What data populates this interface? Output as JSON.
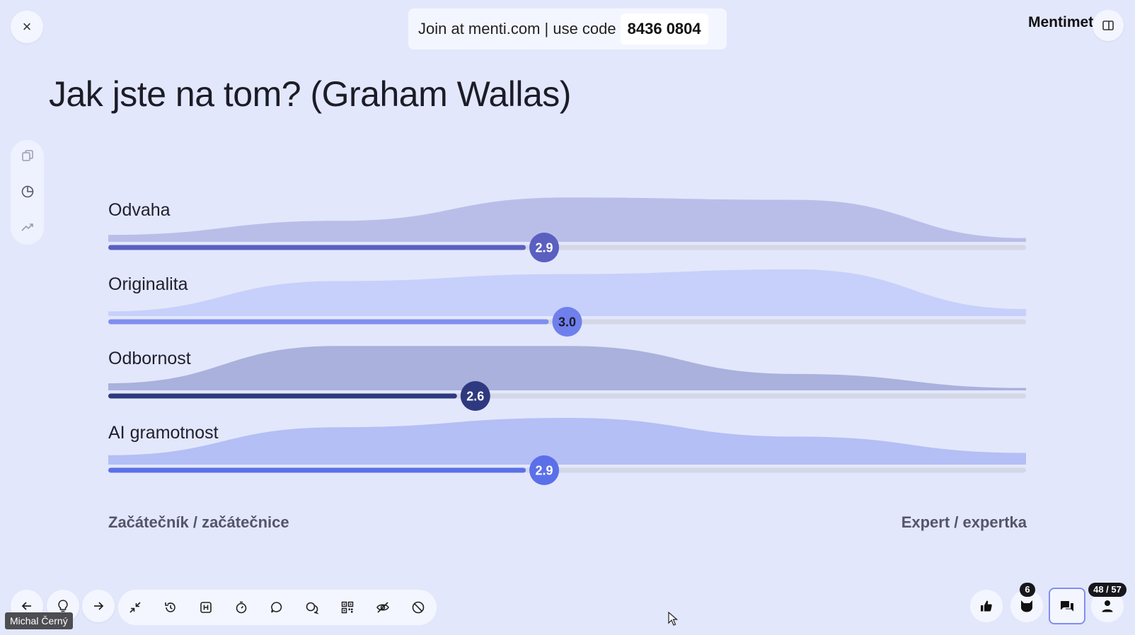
{
  "header": {
    "close_label": "×",
    "join_text": "Join at menti.com | use code",
    "join_code": "8436 0804",
    "brand_name": "Mentimeter"
  },
  "slide": {
    "title": "Jak jste na tom? (Graham Wallas)",
    "scale_min_label": "Začátečník / začátečnice",
    "scale_max_label": "Expert / expertka"
  },
  "chart_data": {
    "type": "scales",
    "scale_range": [
      1,
      5
    ],
    "items": [
      {
        "label": "Odvaha",
        "mean": 2.9,
        "mean_label": "2.9",
        "color": "#5a5fc0",
        "track_color": "#5a5fc0",
        "area_color": "#b9bee9",
        "distribution": [
          0.15,
          0.45,
          0.95,
          0.9,
          0.08
        ]
      },
      {
        "label": "Originalita",
        "mean": 3.0,
        "mean_label": "3.0",
        "color": "#6f80ec",
        "track_color": "#7f8ff0",
        "area_color": "#c6d0fb",
        "distribution": [
          0.1,
          0.75,
          0.9,
          1.0,
          0.15
        ]
      },
      {
        "label": "Odbornost",
        "mean": 2.6,
        "mean_label": "2.6",
        "color": "#2e3980",
        "track_color": "#2e3980",
        "area_color": "#a9b1dc",
        "distribution": [
          0.15,
          0.95,
          0.95,
          0.35,
          0.05
        ]
      },
      {
        "label": "AI gramotnost",
        "mean": 2.9,
        "mean_label": "2.9",
        "color": "#5b70e8",
        "track_color": "#5b70e8",
        "area_color": "#b3bff5",
        "distribution": [
          0.2,
          0.8,
          1.0,
          0.6,
          0.25
        ]
      }
    ]
  },
  "footer": {
    "presenter_name": "Michal Černý",
    "reactions_count": "6",
    "participants_count": "48 / 57"
  },
  "colors": {
    "background": "#e3e7fb",
    "track_empty": "#d3d7e6",
    "accent_border": "#7f8ff0"
  },
  "icons": {
    "sidebar": [
      "copy-icon",
      "pie-chart-icon",
      "trend-icon"
    ],
    "toolbar": [
      "back-arrow-icon",
      "lightbulb-icon",
      "forward-arrow-icon",
      "minimize-icon",
      "reset-icon",
      "hide-results-icon",
      "timer-icon",
      "comments-icon",
      "q-and-a-icon",
      "qr-code-icon",
      "eye-off-icon",
      "block-icon"
    ],
    "right": [
      "thumbs-up-icon",
      "cat-reaction-icon",
      "chat-icon",
      "participants-icon"
    ]
  }
}
